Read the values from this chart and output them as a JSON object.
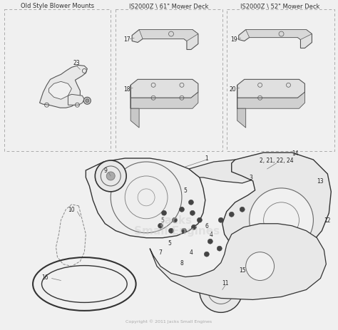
{
  "fig_w": 4.74,
  "fig_h": 4.64,
  "dpi": 100,
  "bg_color": "#f0f0f0",
  "line_color": "#555555",
  "dark_line": "#333333",
  "box1_title": "Old Style Blower Mounts",
  "box2_title": "IS2000Z \\ 61\" Mower Deck",
  "box3_title": "IS2000Z \\ 52\" Mower Deck",
  "copyright": "Copyright © 2011 Jacks Small Engines",
  "watermark1": "Jacks",
  "watermark2": "Small Engines",
  "title_fontsize": 6.0,
  "label_fontsize": 5.5,
  "watermark_color": "#d0d0d0"
}
